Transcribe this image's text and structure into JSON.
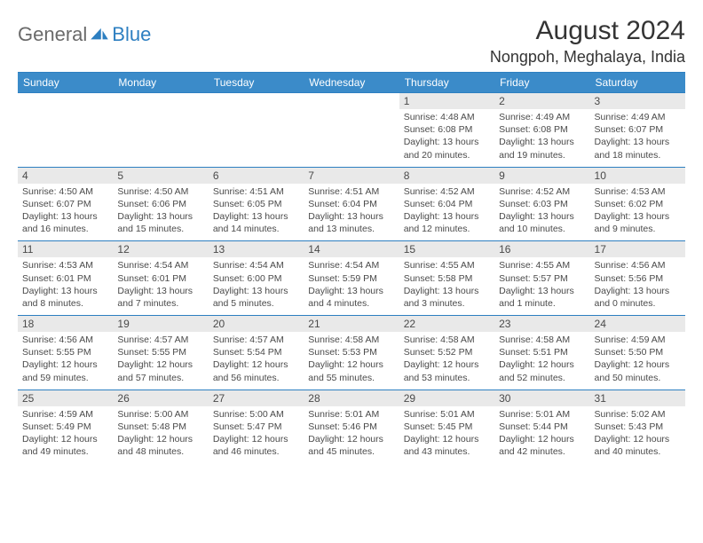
{
  "logo": {
    "text1": "General",
    "text2": "Blue",
    "icon_color": "#2d7fc1",
    "text1_color": "#6a6a6a"
  },
  "title": "August 2024",
  "location": "Nongpoh, Meghalaya, India",
  "colors": {
    "header_bg": "#3b8bc9",
    "header_text": "#ffffff",
    "border": "#2d7fc1",
    "daynum_bg": "#e9e9e9",
    "text": "#4a4a4a"
  },
  "weekdays": [
    "Sunday",
    "Monday",
    "Tuesday",
    "Wednesday",
    "Thursday",
    "Friday",
    "Saturday"
  ],
  "weeks": [
    [
      null,
      null,
      null,
      null,
      {
        "n": "1",
        "sr": "4:48 AM",
        "ss": "6:08 PM",
        "dl": "13 hours and 20 minutes."
      },
      {
        "n": "2",
        "sr": "4:49 AM",
        "ss": "6:08 PM",
        "dl": "13 hours and 19 minutes."
      },
      {
        "n": "3",
        "sr": "4:49 AM",
        "ss": "6:07 PM",
        "dl": "13 hours and 18 minutes."
      }
    ],
    [
      {
        "n": "4",
        "sr": "4:50 AM",
        "ss": "6:07 PM",
        "dl": "13 hours and 16 minutes."
      },
      {
        "n": "5",
        "sr": "4:50 AM",
        "ss": "6:06 PM",
        "dl": "13 hours and 15 minutes."
      },
      {
        "n": "6",
        "sr": "4:51 AM",
        "ss": "6:05 PM",
        "dl": "13 hours and 14 minutes."
      },
      {
        "n": "7",
        "sr": "4:51 AM",
        "ss": "6:04 PM",
        "dl": "13 hours and 13 minutes."
      },
      {
        "n": "8",
        "sr": "4:52 AM",
        "ss": "6:04 PM",
        "dl": "13 hours and 12 minutes."
      },
      {
        "n": "9",
        "sr": "4:52 AM",
        "ss": "6:03 PM",
        "dl": "13 hours and 10 minutes."
      },
      {
        "n": "10",
        "sr": "4:53 AM",
        "ss": "6:02 PM",
        "dl": "13 hours and 9 minutes."
      }
    ],
    [
      {
        "n": "11",
        "sr": "4:53 AM",
        "ss": "6:01 PM",
        "dl": "13 hours and 8 minutes."
      },
      {
        "n": "12",
        "sr": "4:54 AM",
        "ss": "6:01 PM",
        "dl": "13 hours and 7 minutes."
      },
      {
        "n": "13",
        "sr": "4:54 AM",
        "ss": "6:00 PM",
        "dl": "13 hours and 5 minutes."
      },
      {
        "n": "14",
        "sr": "4:54 AM",
        "ss": "5:59 PM",
        "dl": "13 hours and 4 minutes."
      },
      {
        "n": "15",
        "sr": "4:55 AM",
        "ss": "5:58 PM",
        "dl": "13 hours and 3 minutes."
      },
      {
        "n": "16",
        "sr": "4:55 AM",
        "ss": "5:57 PM",
        "dl": "13 hours and 1 minute."
      },
      {
        "n": "17",
        "sr": "4:56 AM",
        "ss": "5:56 PM",
        "dl": "13 hours and 0 minutes."
      }
    ],
    [
      {
        "n": "18",
        "sr": "4:56 AM",
        "ss": "5:55 PM",
        "dl": "12 hours and 59 minutes."
      },
      {
        "n": "19",
        "sr": "4:57 AM",
        "ss": "5:55 PM",
        "dl": "12 hours and 57 minutes."
      },
      {
        "n": "20",
        "sr": "4:57 AM",
        "ss": "5:54 PM",
        "dl": "12 hours and 56 minutes."
      },
      {
        "n": "21",
        "sr": "4:58 AM",
        "ss": "5:53 PM",
        "dl": "12 hours and 55 minutes."
      },
      {
        "n": "22",
        "sr": "4:58 AM",
        "ss": "5:52 PM",
        "dl": "12 hours and 53 minutes."
      },
      {
        "n": "23",
        "sr": "4:58 AM",
        "ss": "5:51 PM",
        "dl": "12 hours and 52 minutes."
      },
      {
        "n": "24",
        "sr": "4:59 AM",
        "ss": "5:50 PM",
        "dl": "12 hours and 50 minutes."
      }
    ],
    [
      {
        "n": "25",
        "sr": "4:59 AM",
        "ss": "5:49 PM",
        "dl": "12 hours and 49 minutes."
      },
      {
        "n": "26",
        "sr": "5:00 AM",
        "ss": "5:48 PM",
        "dl": "12 hours and 48 minutes."
      },
      {
        "n": "27",
        "sr": "5:00 AM",
        "ss": "5:47 PM",
        "dl": "12 hours and 46 minutes."
      },
      {
        "n": "28",
        "sr": "5:01 AM",
        "ss": "5:46 PM",
        "dl": "12 hours and 45 minutes."
      },
      {
        "n": "29",
        "sr": "5:01 AM",
        "ss": "5:45 PM",
        "dl": "12 hours and 43 minutes."
      },
      {
        "n": "30",
        "sr": "5:01 AM",
        "ss": "5:44 PM",
        "dl": "12 hours and 42 minutes."
      },
      {
        "n": "31",
        "sr": "5:02 AM",
        "ss": "5:43 PM",
        "dl": "12 hours and 40 minutes."
      }
    ]
  ],
  "labels": {
    "sunrise": "Sunrise:",
    "sunset": "Sunset:",
    "daylight": "Daylight:"
  }
}
